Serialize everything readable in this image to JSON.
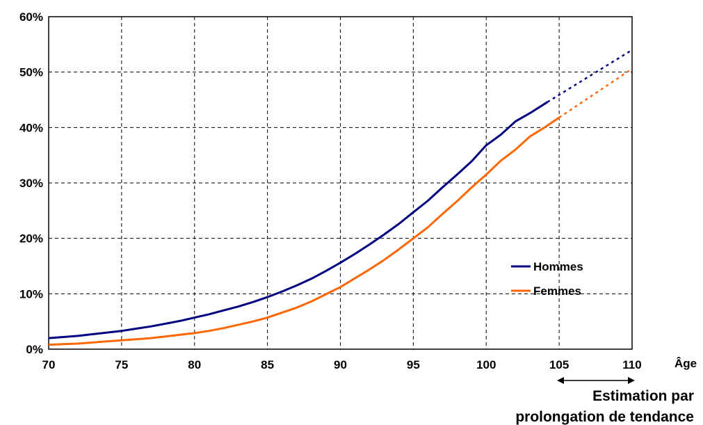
{
  "chart_data": {
    "type": "line",
    "xlabel": "Âge",
    "ylabel": "",
    "title": "",
    "xlim": [
      70,
      110
    ],
    "ylim": [
      0,
      60
    ],
    "xticks": [
      70,
      75,
      80,
      85,
      90,
      95,
      100,
      105,
      110
    ],
    "xtick_labels": [
      "70",
      "75",
      "80",
      "85",
      "90",
      "95",
      "100",
      "105",
      "110"
    ],
    "yticks": [
      0,
      10,
      20,
      30,
      40,
      50,
      60
    ],
    "ytick_labels": [
      "0%",
      "10%",
      "20%",
      "30%",
      "40%",
      "50%",
      "60%"
    ],
    "grid": true,
    "legend_position": "right",
    "series": [
      {
        "name": "Hommes",
        "color": "#000080",
        "x": [
          70,
          71,
          72,
          73,
          74,
          75,
          76,
          77,
          78,
          79,
          80,
          81,
          82,
          83,
          84,
          85,
          86,
          87,
          88,
          89,
          90,
          91,
          92,
          93,
          94,
          95,
          96,
          97,
          98,
          99,
          100,
          101,
          102,
          103,
          104.2
        ],
        "values": [
          2.0,
          2.2,
          2.4,
          2.7,
          3.0,
          3.3,
          3.7,
          4.1,
          4.6,
          5.1,
          5.7,
          6.3,
          7.0,
          7.7,
          8.5,
          9.4,
          10.4,
          11.5,
          12.7,
          14.1,
          15.6,
          17.2,
          18.9,
          20.7,
          22.6,
          24.7,
          26.8,
          29.2,
          31.5,
          33.9,
          36.8,
          38.7,
          41.1,
          42.6,
          44.6
        ],
        "projection": {
          "x": [
            104.2,
            110
          ],
          "values": [
            44.6,
            54.0
          ]
        }
      },
      {
        "name": "Femmes",
        "color": "#ff6600",
        "x": [
          70,
          71,
          72,
          73,
          74,
          75,
          76,
          77,
          78,
          79,
          80,
          81,
          82,
          83,
          84,
          85,
          86,
          87,
          88,
          89,
          90,
          91,
          92,
          93,
          94,
          95,
          96,
          97,
          98,
          99,
          100,
          101,
          102,
          103,
          104,
          105
        ],
        "values": [
          0.8,
          0.9,
          1.0,
          1.2,
          1.4,
          1.6,
          1.8,
          2.0,
          2.3,
          2.6,
          2.9,
          3.3,
          3.8,
          4.4,
          5.0,
          5.7,
          6.6,
          7.5,
          8.6,
          9.9,
          11.2,
          12.8,
          14.4,
          16.1,
          18.0,
          20.0,
          22.0,
          24.4,
          26.7,
          29.2,
          31.5,
          34.0,
          36.0,
          38.4,
          40.0,
          41.8
        ],
        "projection": {
          "x": [
            105,
            110
          ],
          "values": [
            41.8,
            50.6
          ]
        }
      }
    ],
    "annotations": {
      "projection_label_line1": "Estimation par",
      "projection_label_line2": "prolongation de tendance",
      "projection_range": [
        105,
        110
      ]
    }
  }
}
